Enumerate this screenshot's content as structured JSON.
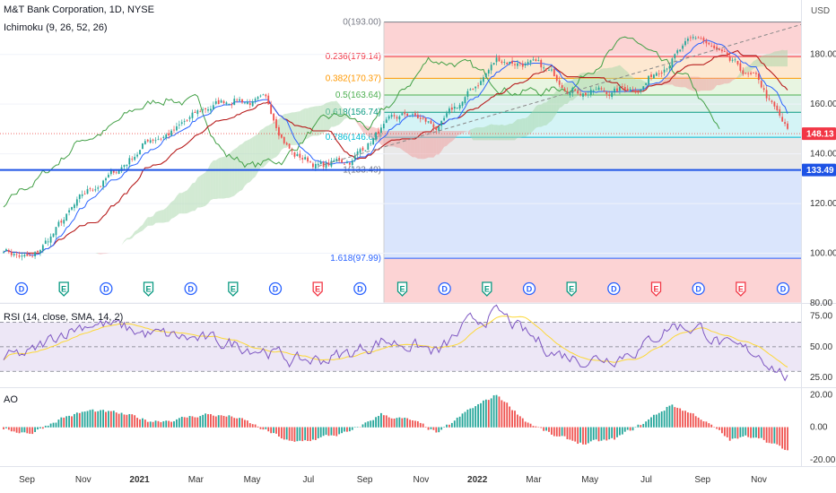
{
  "header": {
    "title": "M&T Bank Corporation, 1D, NYSE",
    "indicator": "Ichimoku (9, 26, 52, 26)",
    "currency": "USD"
  },
  "price_tags": {
    "current": "148.13",
    "current_color": "#f23645",
    "level": "133.49",
    "level_color": "#1e53e5"
  },
  "fib_levels": [
    {
      "label": "0(193.00)",
      "value": 193.0,
      "color": "#787b86",
      "fill": "#fccbcd"
    },
    {
      "label": "0.236(179.14)",
      "value": 179.14,
      "color": "#f23645",
      "fill": "#fde4c9"
    },
    {
      "label": "0.382(170.37)",
      "value": 170.37,
      "color": "#ff9800",
      "fill": "#e4f3dc"
    },
    {
      "label": "0.5(163.64)",
      "value": 163.64,
      "color": "#4caf50",
      "fill": "#d7efe6"
    },
    {
      "label": "0.618(156.74)",
      "value": 156.74,
      "color": "#089981",
      "fill": "#ccf2f5"
    },
    {
      "label": "0.786(146.65)",
      "value": 146.65,
      "color": "#00bcd4",
      "fill": "#e5e5e5"
    },
    {
      "label": "1(133.49)",
      "value": 133.49,
      "color": "#787b86",
      "fill": "#d4e0fc"
    },
    {
      "label": "1.618(97.99)",
      "value": 97.99,
      "color": "#2962ff",
      "fill": "#fccbcd"
    }
  ],
  "price_axis": {
    "ticks": [
      "180.00",
      "160.00",
      "140.00",
      "120.00",
      "100.00",
      "80.00"
    ],
    "values": [
      180,
      160,
      140,
      120,
      100,
      80
    ],
    "min": 80,
    "max": 199
  },
  "rsi": {
    "title": "RSI (14, close, SMA, 14, 2)",
    "ticks": [
      "75.00",
      "50.00",
      "25.00"
    ],
    "values": [
      75,
      50,
      25
    ],
    "upper": 70,
    "lower": 30
  },
  "ao": {
    "title": "AO",
    "ticks": [
      "20.00",
      "0.00",
      "-20.00"
    ],
    "values": [
      20,
      0,
      -20
    ]
  },
  "time_axis": {
    "labels": [
      "Sep",
      "Nov",
      "2021",
      "Mar",
      "May",
      "Jul",
      "Sep",
      "Nov",
      "2022",
      "Mar",
      "May",
      "Jul",
      "Sep",
      "Nov"
    ],
    "bold": [
      false,
      false,
      true,
      false,
      false,
      false,
      false,
      false,
      true,
      false,
      false,
      false,
      false,
      false
    ]
  },
  "event_markers": [
    {
      "t": "D",
      "kind": "dividend"
    },
    {
      "t": "E",
      "kind": "earnings"
    },
    {
      "t": "D",
      "kind": "dividend"
    },
    {
      "t": "E",
      "kind": "earnings"
    },
    {
      "t": "D",
      "kind": "dividend"
    },
    {
      "t": "E",
      "kind": "earnings"
    },
    {
      "t": "D",
      "kind": "dividend"
    },
    {
      "t": "E",
      "kind": "earnings-miss"
    },
    {
      "t": "D",
      "kind": "dividend"
    },
    {
      "t": "E",
      "kind": "earnings"
    },
    {
      "t": "D",
      "kind": "dividend"
    },
    {
      "t": "E",
      "kind": "earnings"
    },
    {
      "t": "D",
      "kind": "dividend"
    },
    {
      "t": "E",
      "kind": "earnings"
    },
    {
      "t": "D",
      "kind": "dividend"
    },
    {
      "t": "E",
      "kind": "earnings-miss"
    },
    {
      "t": "D",
      "kind": "dividend"
    },
    {
      "t": "E",
      "kind": "earnings-miss"
    },
    {
      "t": "D",
      "kind": "dividend"
    }
  ],
  "colors": {
    "up": "#26a69a",
    "down": "#ef5350",
    "tenkan": "#2962ff",
    "kijun": "#b71c1c",
    "lagging": "#43a047",
    "cloud_up": "#a5d6a7",
    "cloud_down": "#ef9a9a",
    "rsi_line": "#7e57c2",
    "rsi_ma": "#fdd835",
    "rsi_band": "#ede7f6",
    "support": "#1e53e5",
    "trend": "#888888"
  },
  "chart_data": {
    "type": "line",
    "description_series": "Daily closing price of M&T Bank Corporation (approximate, read from chart)",
    "x": [
      "2020-09",
      "2020-10",
      "2020-11",
      "2020-12",
      "2021-01",
      "2021-02",
      "2021-03",
      "2021-04",
      "2021-05",
      "2021-06",
      "2021-07",
      "2021-08",
      "2021-09",
      "2021-10",
      "2021-11",
      "2021-12",
      "2022-01",
      "2022-02",
      "2022-03",
      "2022-04",
      "2022-05",
      "2022-06",
      "2022-07",
      "2022-08",
      "2022-09",
      "2022-10",
      "2022-11",
      "2022-12"
    ],
    "series": [
      {
        "values": [
          102,
          97,
          112,
          125,
          134,
          146,
          150,
          158,
          163,
          160,
          140,
          135,
          138,
          150,
          155,
          150,
          163,
          178,
          177,
          170,
          166,
          165,
          168,
          180,
          186,
          175,
          168,
          148
        ]
      }
    ],
    "ylim": [
      80,
      199
    ],
    "support_level": 133.49,
    "rsi_values": [
      40,
      45,
      62,
      70,
      66,
      60,
      58,
      55,
      52,
      48,
      38,
      40,
      45,
      55,
      52,
      45,
      68,
      78,
      60,
      45,
      40,
      42,
      50,
      68,
      65,
      48,
      45,
      25
    ],
    "ao_values": [
      -2,
      -3,
      6,
      10,
      8,
      4,
      5,
      8,
      6,
      -2,
      -10,
      -6,
      -3,
      8,
      4,
      -4,
      10,
      20,
      4,
      -6,
      -10,
      -8,
      2,
      14,
      6,
      -8,
      -5,
      -15
    ]
  }
}
